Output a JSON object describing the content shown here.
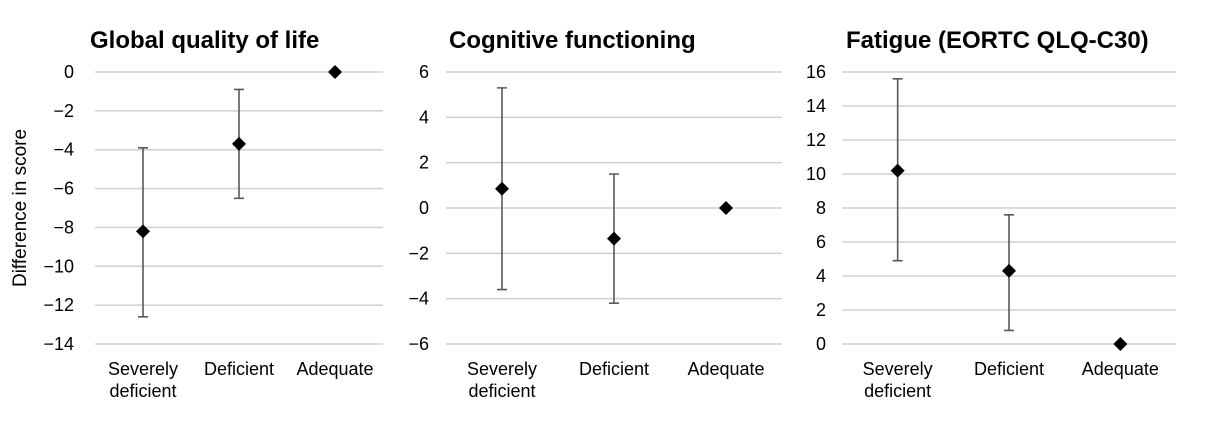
{
  "chart_data": [
    {
      "type": "scatter",
      "title": "Global quality of life",
      "ylabel": "Difference in score",
      "categories": [
        "Severely\ndeficient",
        "Deficient",
        "Adequate"
      ],
      "values": [
        -8.2,
        -3.7,
        0
      ],
      "error_low": [
        -12.6,
        -6.5,
        0
      ],
      "error_high": [
        -3.9,
        -0.9,
        0
      ],
      "ylim": [
        -14,
        0
      ],
      "yticks": [
        0,
        -2,
        -4,
        -6,
        -8,
        -10,
        -12,
        -14
      ],
      "ytick_labels": [
        "0",
        "−2",
        "−4",
        "−6",
        "−8",
        "−10",
        "−12",
        "−14"
      ],
      "grid": true,
      "marker": "diamond"
    },
    {
      "type": "scatter",
      "title": "Cognitive functioning",
      "ylabel": "",
      "categories": [
        "Severely\ndeficient",
        "Deficient",
        "Adequate"
      ],
      "values": [
        0.85,
        -1.35,
        0
      ],
      "error_low": [
        -3.6,
        -4.2,
        0
      ],
      "error_high": [
        5.3,
        1.5,
        0
      ],
      "ylim": [
        -6,
        6
      ],
      "yticks": [
        6,
        4,
        2,
        0,
        -2,
        -4,
        -6
      ],
      "ytick_labels": [
        "6",
        "4",
        "2",
        "0",
        "−2",
        "−4",
        "−6"
      ],
      "grid": true,
      "marker": "diamond"
    },
    {
      "type": "scatter",
      "title": "Fatigue (EORTC QLQ-C30)",
      "ylabel": "",
      "categories": [
        "Severely\ndeficient",
        "Deficient",
        "Adequate"
      ],
      "values": [
        10.2,
        4.3,
        0
      ],
      "error_low": [
        4.9,
        0.8,
        0
      ],
      "error_high": [
        15.6,
        7.6,
        0
      ],
      "ylim": [
        0,
        16
      ],
      "yticks": [
        16,
        14,
        12,
        10,
        8,
        6,
        4,
        2,
        0
      ],
      "ytick_labels": [
        "16",
        "14",
        "12",
        "10",
        "8",
        "6",
        "4",
        "2",
        "0"
      ],
      "grid": true,
      "marker": "diamond"
    }
  ]
}
